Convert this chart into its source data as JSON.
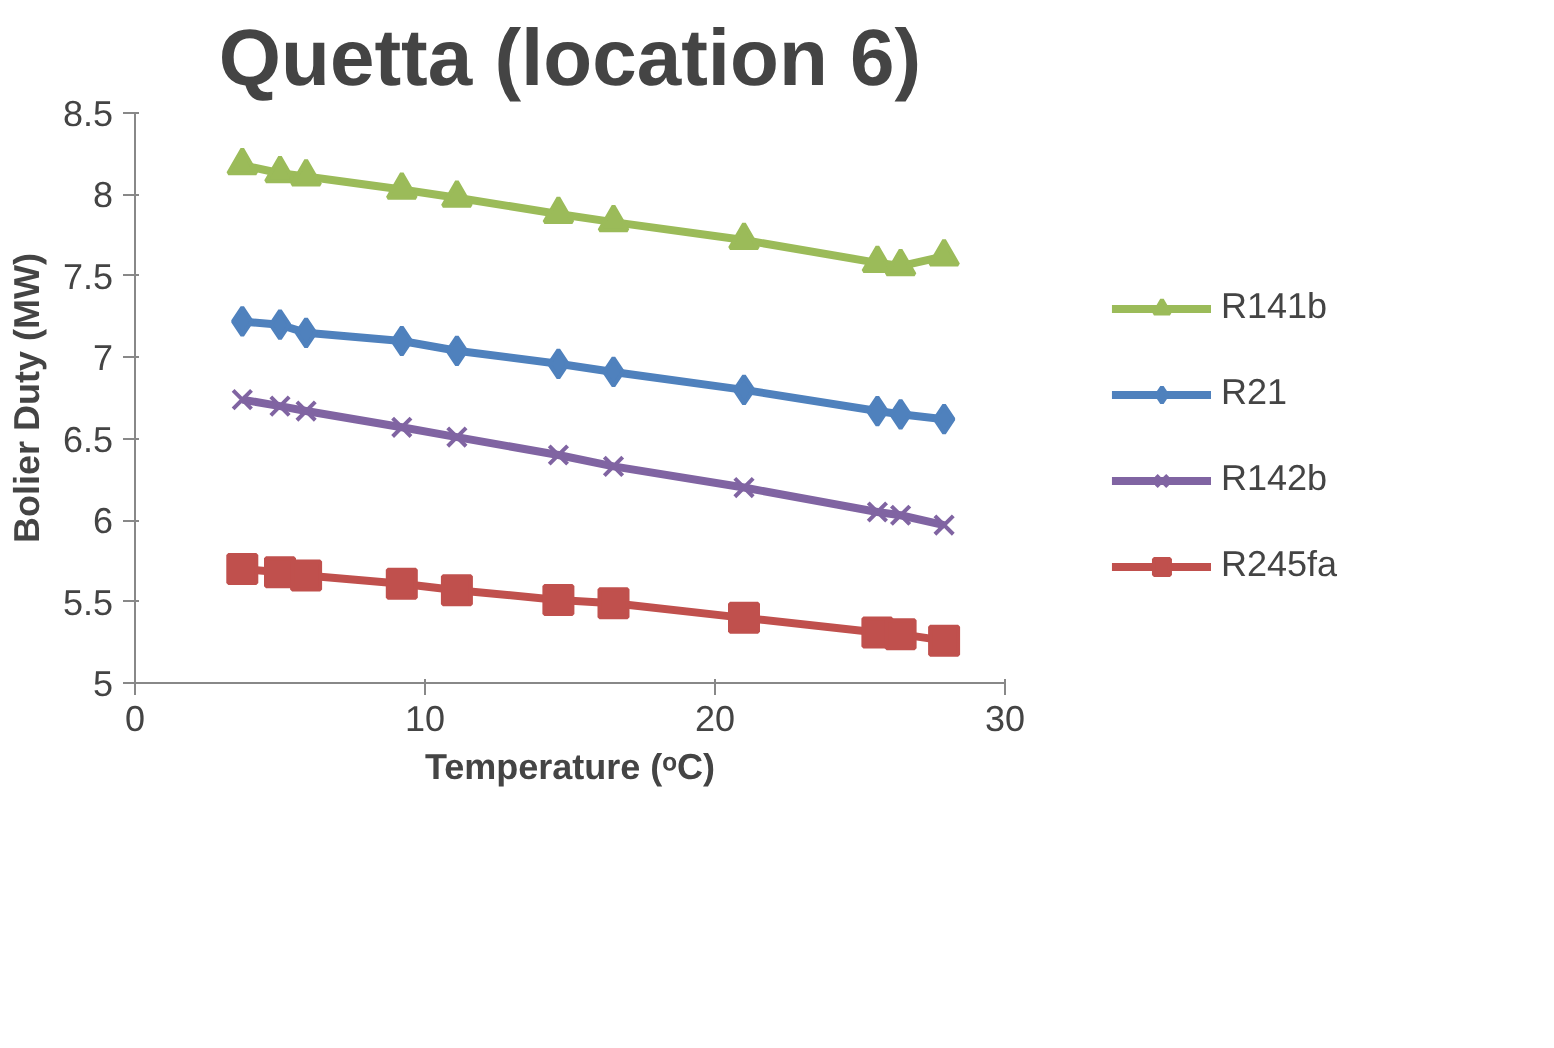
{
  "chart_data": {
    "type": "line",
    "title": "Quetta (location 6)",
    "xlabel": "Temperature (ᵒC)",
    "ylabel": "Bolier Duty (MW)",
    "x": [
      3.7,
      5.0,
      5.9,
      9.2,
      11.1,
      14.6,
      16.5,
      21.0,
      25.6,
      26.4,
      27.9
    ],
    "series": [
      {
        "name": "R141b",
        "color": "#9bbb59",
        "marker": "triangle",
        "values": [
          8.18,
          8.13,
          8.11,
          8.03,
          7.98,
          7.88,
          7.83,
          7.72,
          7.58,
          7.56,
          7.62
        ]
      },
      {
        "name": "R21",
        "color": "#4f81bd",
        "marker": "diamond",
        "values": [
          7.22,
          7.2,
          7.15,
          7.1,
          7.04,
          6.96,
          6.91,
          6.8,
          6.67,
          6.65,
          6.62
        ]
      },
      {
        "name": "R142b",
        "color": "#8064a2",
        "marker": "cross",
        "values": [
          6.74,
          6.7,
          6.67,
          6.57,
          6.51,
          6.4,
          6.33,
          6.2,
          6.05,
          6.03,
          5.97
        ]
      },
      {
        "name": "R245fa",
        "color": "#c0504d",
        "marker": "square",
        "values": [
          5.7,
          5.68,
          5.66,
          5.61,
          5.57,
          5.51,
          5.49,
          5.4,
          5.31,
          5.3,
          5.26
        ]
      }
    ],
    "xlim": [
      0,
      30
    ],
    "ylim": [
      5,
      8.5
    ],
    "xticks": [
      0,
      10,
      20,
      30
    ],
    "yticks": [
      5,
      5.5,
      6,
      6.5,
      7,
      7.5,
      8,
      8.5
    ],
    "grid": false,
    "legend": "right",
    "line_style": "solid"
  }
}
